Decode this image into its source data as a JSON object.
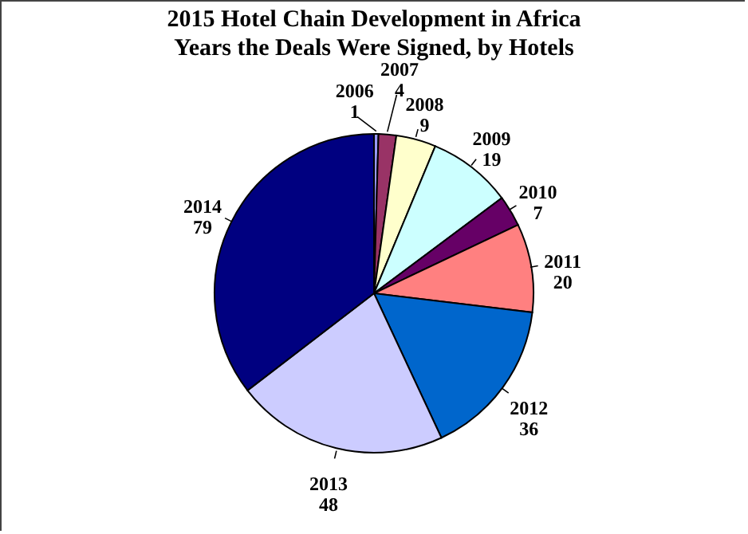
{
  "chart_data": {
    "type": "pie",
    "title": "2015 Hotel Chain Development in Africa",
    "subtitle": "Years the Deals Were Signed, by Hotels",
    "categories": [
      "2006",
      "2007",
      "2008",
      "2009",
      "2010",
      "2011",
      "2012",
      "2013",
      "2014"
    ],
    "values": [
      1,
      4,
      9,
      19,
      7,
      20,
      36,
      48,
      79
    ],
    "colors": [
      "#9999ff",
      "#993366",
      "#ffffcc",
      "#ccffff",
      "#660066",
      "#ff8080",
      "#0066cc",
      "#ccccff",
      "#000080"
    ],
    "data_labels": true,
    "legend": false
  }
}
